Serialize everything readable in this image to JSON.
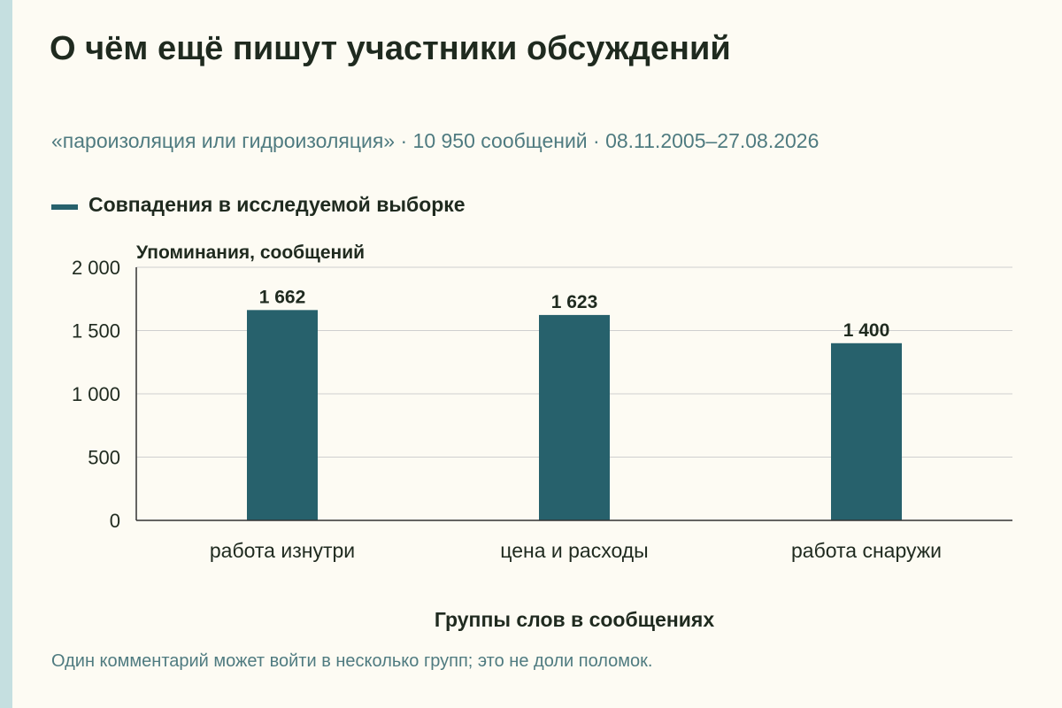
{
  "title": "О чём ещё пишут участники обсуждений",
  "subtitle": "«пароизоляция или гидроизоляция» · 10 950 сообщений · 08.11.2005–27.08.2026",
  "legend": {
    "label": "Совпадения в исследуемой выборке"
  },
  "note": "Один комментарий может войти в несколько групп; это не доли поломок.",
  "colors": {
    "bar": "#27616c",
    "background": "#fdfbf3",
    "accent": "#c5dfe0"
  },
  "chart_data": {
    "type": "bar",
    "categories": [
      "работа изнутри",
      "цена и расходы",
      "работа снаружи"
    ],
    "values": [
      1662,
      1623,
      1400
    ],
    "value_labels": [
      "1 662",
      "1 623",
      "1 400"
    ],
    "ylabel": "Упоминания, сообщений",
    "xlabel": "Группы слов в сообщениях",
    "ylim": [
      0,
      2000
    ],
    "yticks": [
      0,
      500,
      1000,
      1500,
      2000
    ],
    "ytick_labels": [
      "0",
      "500",
      "1 000",
      "1 500",
      "2 000"
    ],
    "grid": true
  }
}
